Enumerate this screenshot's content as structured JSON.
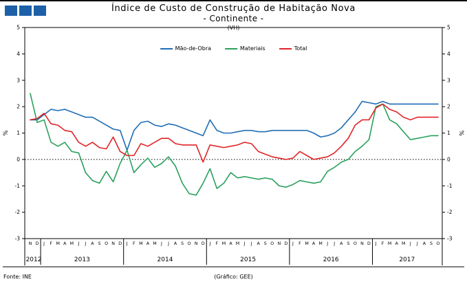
{
  "logo": {
    "square_color": "#1d60a8",
    "square_count": 3
  },
  "title": {
    "line1": "Índice de Custo de Construção de Habitação Nova",
    "line2": "- Continente -",
    "line3": "(VH)"
  },
  "footer": {
    "source": "Fonte: INE",
    "credit": "(Gráfico: GEE)"
  },
  "chart_data": {
    "type": "line",
    "title": "Índice de Custo de Construção de Habitação Nova - Continente (VH)",
    "ylabel_left": "%",
    "ylabel_right": "%",
    "ylim": [
      -3,
      5
    ],
    "yticks": [
      5,
      4,
      3,
      2,
      1,
      0,
      -1,
      -2,
      -3
    ],
    "zero_line": "dotted",
    "legend_position": "top-center",
    "grid": false,
    "x_months": [
      "N",
      "D",
      "J",
      "F",
      "M",
      "A",
      "M",
      "J",
      "J",
      "A",
      "S",
      "O",
      "N",
      "D",
      "J",
      "F",
      "M",
      "A",
      "M",
      "J",
      "J",
      "A",
      "S",
      "O",
      "N",
      "D",
      "J",
      "F",
      "M",
      "A",
      "M",
      "J",
      "J",
      "A",
      "S",
      "O",
      "N",
      "D",
      "J",
      "F",
      "M",
      "A",
      "M",
      "J",
      "J",
      "A",
      "S",
      "O",
      "N",
      "D",
      "J",
      "F",
      "M",
      "A",
      "M",
      "J",
      "J",
      "A",
      "S",
      "O"
    ],
    "x_years": [
      {
        "label": "2012",
        "start": 0,
        "end": 1
      },
      {
        "label": "2013",
        "start": 2,
        "end": 13
      },
      {
        "label": "2014",
        "start": 14,
        "end": 25
      },
      {
        "label": "2015",
        "start": 26,
        "end": 37
      },
      {
        "label": "2016",
        "start": 38,
        "end": 49
      },
      {
        "label": "2017",
        "start": 50,
        "end": 59
      }
    ],
    "legend": [
      {
        "name": "Mão-de-Obra",
        "color": "#1f6cb5"
      },
      {
        "name": "Materiais",
        "color": "#28a05c"
      },
      {
        "name": "Total",
        "color": "#e02325"
      }
    ],
    "series": [
      {
        "name": "Mão-de-Obra",
        "color": "#1f6cb5",
        "values": [
          1.5,
          1.5,
          1.7,
          1.9,
          1.85,
          1.9,
          1.8,
          1.7,
          1.6,
          1.6,
          1.45,
          1.3,
          1.15,
          1.1,
          0.35,
          1.1,
          1.4,
          1.45,
          1.3,
          1.25,
          1.35,
          1.3,
          1.2,
          1.1,
          1.0,
          0.9,
          1.5,
          1.1,
          1.0,
          1.0,
          1.05,
          1.1,
          1.1,
          1.05,
          1.05,
          1.1,
          1.1,
          1.1,
          1.1,
          1.1,
          1.1,
          1.0,
          0.85,
          0.9,
          1.0,
          1.2,
          1.5,
          1.8,
          2.2,
          2.15,
          2.1,
          2.2,
          2.1,
          2.1,
          2.1,
          2.1,
          2.1,
          2.1,
          2.1,
          2.1
        ]
      },
      {
        "name": "Materiais",
        "color": "#28a05c",
        "values": [
          2.5,
          1.4,
          1.5,
          0.65,
          0.5,
          0.65,
          0.3,
          0.25,
          -0.5,
          -0.8,
          -0.9,
          -0.45,
          -0.85,
          -0.15,
          0.35,
          -0.5,
          -0.2,
          0.05,
          -0.3,
          -0.15,
          0.1,
          -0.25,
          -0.9,
          -1.3,
          -1.35,
          -0.9,
          -0.35,
          -1.1,
          -0.9,
          -0.5,
          -0.7,
          -0.65,
          -0.7,
          -0.75,
          -0.7,
          -0.75,
          -1.0,
          -1.05,
          -0.95,
          -0.8,
          -0.85,
          -0.9,
          -0.85,
          -0.45,
          -0.3,
          -0.1,
          0.0,
          0.3,
          0.5,
          0.75,
          2.0,
          2.1,
          1.5,
          1.35,
          1.05,
          0.75,
          0.8,
          0.85,
          0.9,
          0.9
        ]
      },
      {
        "name": "Total",
        "color": "#e02325",
        "values": [
          1.5,
          1.55,
          1.75,
          1.35,
          1.3,
          1.1,
          1.05,
          0.65,
          0.5,
          0.65,
          0.45,
          0.4,
          0.85,
          0.3,
          0.15,
          0.15,
          0.6,
          0.5,
          0.65,
          0.8,
          0.8,
          0.6,
          0.55,
          0.55,
          0.55,
          -0.1,
          0.55,
          0.5,
          0.45,
          0.5,
          0.55,
          0.65,
          0.6,
          0.3,
          0.2,
          0.1,
          0.05,
          0.0,
          0.05,
          0.3,
          0.15,
          0.0,
          0.05,
          0.1,
          0.25,
          0.5,
          0.8,
          1.3,
          1.5,
          1.5,
          1.95,
          2.1,
          1.9,
          1.8,
          1.6,
          1.5,
          1.6,
          1.6,
          1.6,
          1.6
        ]
      }
    ]
  }
}
